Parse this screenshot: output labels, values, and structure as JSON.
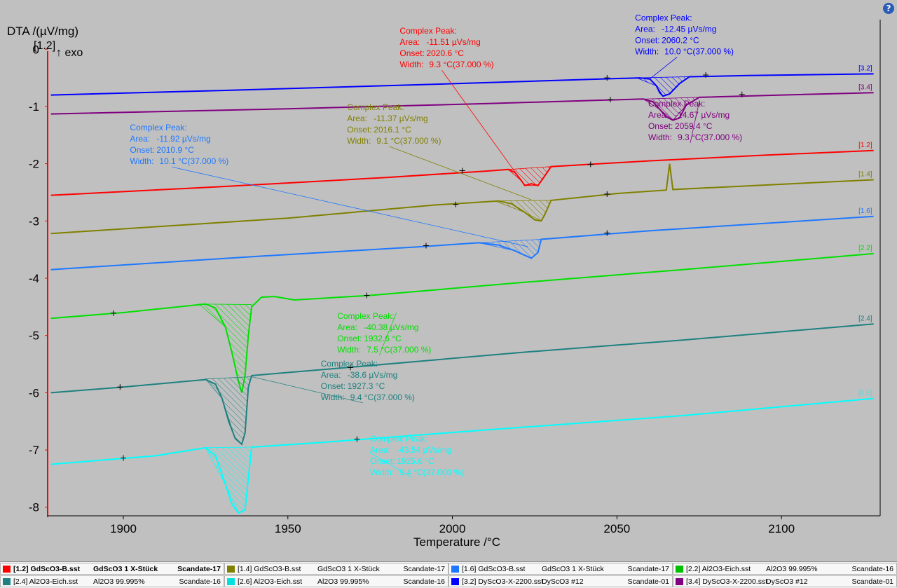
{
  "ui": {
    "help_glyph": "?"
  },
  "chart_data": {
    "type": "line",
    "ylabel": "DTA /(µV/mg)",
    "ymarker": "[1.2]",
    "exo_label": "↑ exo",
    "xlabel": "Temperature /°C",
    "xlim": [
      1877,
      2130
    ],
    "ylim": [
      -8.15,
      0.15
    ],
    "xticks": [
      1900,
      1950,
      2000,
      2050,
      2100
    ],
    "yticks": [
      0,
      -1,
      -2,
      -3,
      -4,
      -5,
      -6,
      -7,
      -8
    ],
    "axis_color": "#ff0000",
    "series": [
      {
        "id": "[3.2]",
        "color": "#0000ff",
        "points": [
          [
            1878,
            -0.8
          ],
          [
            1930,
            -0.72
          ],
          [
            1990,
            -0.62
          ],
          [
            2040,
            -0.53
          ],
          [
            2057,
            -0.5
          ],
          [
            2060,
            -0.52
          ],
          [
            2062,
            -0.64
          ],
          [
            2063,
            -0.76
          ],
          [
            2064,
            -0.82
          ],
          [
            2066,
            -0.78
          ],
          [
            2069,
            -0.6
          ],
          [
            2072,
            -0.48
          ],
          [
            2090,
            -0.46
          ],
          [
            2128,
            -0.43
          ]
        ],
        "markers": [
          [
            2047,
            -0.5
          ],
          [
            2077,
            -0.45
          ]
        ],
        "peak": {
          "poly": [
            [
              2056,
              -0.5
            ],
            [
              2062,
              -0.64
            ],
            [
              2064,
              -0.82
            ],
            [
              2066,
              -0.78
            ],
            [
              2069,
              -0.6
            ],
            [
              2072,
              -0.48
            ]
          ],
          "title": "Complex Peak:",
          "area": "-12.45 µVs/mg",
          "onset": "2060.2 °C",
          "width": "10.0 °C(37.000 %)",
          "anchor": [
            2060,
            -0.52
          ],
          "label_pos": [
            2055.5,
            0.5
          ]
        }
      },
      {
        "id": "[3.4]",
        "color": "#800080",
        "points": [
          [
            1878,
            -1.13
          ],
          [
            1950,
            -1.04
          ],
          [
            2010,
            -0.95
          ],
          [
            2045,
            -0.89
          ],
          [
            2058,
            -0.87
          ],
          [
            2061,
            -0.92
          ],
          [
            2063,
            -1.05
          ],
          [
            2065,
            -1.18
          ],
          [
            2067,
            -1.24
          ],
          [
            2069,
            -1.2
          ],
          [
            2071,
            -0.98
          ],
          [
            2075,
            -0.84
          ],
          [
            2100,
            -0.8
          ],
          [
            2128,
            -0.76
          ]
        ],
        "markers": [
          [
            2048,
            -0.88
          ],
          [
            2088,
            -0.79
          ]
        ],
        "peak": {
          "poly": [
            [
              2058,
              -0.87
            ],
            [
              2063,
              -1.05
            ],
            [
              2067,
              -1.24
            ],
            [
              2071,
              -0.98
            ],
            [
              2075,
              -0.84
            ]
          ],
          "title": "Complex Peak:",
          "area": "-14.67 µVs/mg",
          "onset": "2059.4 °C",
          "width": "9.3 °C(37.000 %)",
          "anchor": [
            2075,
            -0.92
          ],
          "label_pos": [
            2059.5,
            -1.0
          ]
        }
      },
      {
        "id": "[1.2]",
        "color": "#ff0000",
        "points": [
          [
            1878,
            -2.55
          ],
          [
            1930,
            -2.4
          ],
          [
            1980,
            -2.24
          ],
          [
            2010,
            -2.13
          ],
          [
            2017,
            -2.1
          ],
          [
            2019,
            -2.15
          ],
          [
            2021,
            -2.3
          ],
          [
            2022,
            -2.38
          ],
          [
            2024,
            -2.35
          ],
          [
            2026,
            -2.38
          ],
          [
            2028,
            -2.22
          ],
          [
            2030,
            -2.05
          ],
          [
            2060,
            -1.95
          ],
          [
            2095,
            -1.85
          ],
          [
            2128,
            -1.77
          ]
        ],
        "markers": [
          [
            2003,
            -2.12
          ],
          [
            2042,
            -2.01
          ]
        ],
        "peak": {
          "poly": [
            [
              2017,
              -2.1
            ],
            [
              2021,
              -2.3
            ],
            [
              2022,
              -2.38
            ],
            [
              2026,
              -2.38
            ],
            [
              2028,
              -2.22
            ],
            [
              2030,
              -2.05
            ]
          ],
          "title": "Complex Peak:",
          "area": "-11.51 µVs/mg",
          "onset": "2020.6 °C",
          "width": "9.3 °C(37.000 %)",
          "anchor": [
            2021,
            -2.3
          ],
          "label_pos": [
            1984,
            0.27
          ]
        }
      },
      {
        "id": "[1.4]",
        "color": "#808000",
        "points": [
          [
            1878,
            -3.22
          ],
          [
            1950,
            -2.95
          ],
          [
            1995,
            -2.72
          ],
          [
            2014,
            -2.65
          ],
          [
            2018,
            -2.7
          ],
          [
            2022,
            -2.85
          ],
          [
            2025,
            -2.98
          ],
          [
            2027,
            -3.0
          ],
          [
            2028,
            -2.9
          ],
          [
            2030,
            -2.64
          ],
          [
            2050,
            -2.52
          ],
          [
            2065,
            -2.46
          ],
          [
            2066,
            -2.0
          ],
          [
            2067,
            -2.45
          ],
          [
            2128,
            -2.28
          ]
        ],
        "markers": [
          [
            2001,
            -2.71
          ],
          [
            2047,
            -2.53
          ]
        ],
        "peak": {
          "poly": [
            [
              2013,
              -2.65
            ],
            [
              2022,
              -2.85
            ],
            [
              2027,
              -3.0
            ],
            [
              2030,
              -2.64
            ]
          ],
          "title": "Complex Peak:",
          "area": "-11.37 µVs/mg",
          "onset": "2016.1 °C",
          "width": "9.1 °C(37.000 %)",
          "anchor": [
            2024,
            -2.63
          ],
          "label_pos": [
            1968,
            -1.06
          ]
        }
      },
      {
        "id": "[1.6]",
        "color": "#1e78ff",
        "points": [
          [
            1878,
            -3.85
          ],
          [
            1940,
            -3.62
          ],
          [
            1990,
            -3.45
          ],
          [
            2008,
            -3.38
          ],
          [
            2014,
            -3.42
          ],
          [
            2019,
            -3.52
          ],
          [
            2022,
            -3.6
          ],
          [
            2024,
            -3.65
          ],
          [
            2026,
            -3.55
          ],
          [
            2027,
            -3.32
          ],
          [
            2060,
            -3.17
          ],
          [
            2128,
            -2.92
          ]
        ],
        "markers": [
          [
            1992,
            -3.43
          ],
          [
            2047,
            -3.21
          ]
        ],
        "peak": {
          "poly": [
            [
              2008,
              -3.38
            ],
            [
              2019,
              -3.52
            ],
            [
              2024,
              -3.65
            ],
            [
              2026,
              -3.55
            ],
            [
              2027,
              -3.32
            ]
          ],
          "title": "Complex Peak:",
          "area": "-11.92 µVs/mg",
          "onset": "2010.9 °C",
          "width": "10.1 °C(37.000 %)",
          "anchor": [
            2023,
            -3.45
          ],
          "label_pos": [
            1902,
            -1.42
          ]
        }
      },
      {
        "id": "[2.2]",
        "color": "#00e000",
        "points": [
          [
            1878,
            -4.7
          ],
          [
            1900,
            -4.6
          ],
          [
            1925,
            -4.45
          ],
          [
            1928,
            -4.52
          ],
          [
            1931,
            -4.85
          ],
          [
            1933,
            -5.3
          ],
          [
            1935,
            -5.8
          ],
          [
            1936,
            -6.0
          ],
          [
            1937,
            -5.7
          ],
          [
            1938,
            -5.0
          ],
          [
            1939,
            -4.5
          ],
          [
            1942,
            -4.33
          ],
          [
            1946,
            -4.32
          ],
          [
            1952,
            -4.38
          ],
          [
            1975,
            -4.3
          ],
          [
            2020,
            -4.08
          ],
          [
            2070,
            -3.85
          ],
          [
            2128,
            -3.57
          ]
        ],
        "markers": [
          [
            1897,
            -4.61
          ],
          [
            1974,
            -4.3
          ]
        ],
        "peak": {
          "poly": [
            [
              1923,
              -4.45
            ],
            [
              1931,
              -4.85
            ],
            [
              1935,
              -5.8
            ],
            [
              1936,
              -6.0
            ],
            [
              1937,
              -5.7
            ],
            [
              1938,
              -5.0
            ],
            [
              1939,
              -4.46
            ]
          ],
          "title": "Complex Peak:",
          "area": "-40.38 µVs/mg",
          "onset": "1932.6 °C",
          "width": "7.5 °C(37.000 %)",
          "anchor": [
            1983,
            -4.6
          ],
          "label_pos": [
            1965,
            -4.71
          ]
        }
      },
      {
        "id": "[2.4]",
        "color": "#1e8080",
        "points": [
          [
            1878,
            -6.0
          ],
          [
            1900,
            -5.9
          ],
          [
            1925,
            -5.77
          ],
          [
            1928,
            -5.85
          ],
          [
            1930,
            -6.1
          ],
          [
            1932,
            -6.5
          ],
          [
            1934,
            -6.8
          ],
          [
            1936,
            -6.9
          ],
          [
            1937,
            -6.7
          ],
          [
            1938,
            -5.9
          ],
          [
            1939,
            -5.7
          ],
          [
            1970,
            -5.55
          ],
          [
            2020,
            -5.3
          ],
          [
            2070,
            -5.08
          ],
          [
            2128,
            -4.8
          ]
        ],
        "markers": [
          [
            1899,
            -5.9
          ],
          [
            1969,
            -5.56
          ]
        ],
        "peak": {
          "poly": [
            [
              1925,
              -5.76
            ],
            [
              1930,
              -6.1
            ],
            [
              1934,
              -6.8
            ],
            [
              1936,
              -6.9
            ],
            [
              1937,
              -6.7
            ],
            [
              1938,
              -5.9
            ],
            [
              1939,
              -5.72
            ]
          ],
          "title": "Complex Peak:",
          "area": "-38.6 µVs/mg",
          "onset": "1927.3 °C",
          "width": "9.4 °C(37.000 %)",
          "anchor": [
            1939,
            -5.72
          ],
          "label_pos": [
            1960,
            -5.54
          ]
        }
      },
      {
        "id": "[2.6]",
        "color": "#00ffff",
        "points": [
          [
            1878,
            -7.25
          ],
          [
            1910,
            -7.1
          ],
          [
            1925,
            -6.96
          ],
          [
            1928,
            -7.1
          ],
          [
            1931,
            -7.6
          ],
          [
            1933,
            -7.95
          ],
          [
            1935,
            -8.1
          ],
          [
            1937,
            -8.05
          ],
          [
            1938,
            -7.5
          ],
          [
            1939,
            -6.95
          ],
          [
            1960,
            -6.87
          ],
          [
            2010,
            -6.65
          ],
          [
            2070,
            -6.4
          ],
          [
            2128,
            -6.1
          ]
        ],
        "markers": [
          [
            1900,
            -7.14
          ],
          [
            1971,
            -6.81
          ]
        ],
        "peak": {
          "poly": [
            [
              1925,
              -6.96
            ],
            [
              1931,
              -7.6
            ],
            [
              1935,
              -8.1
            ],
            [
              1937,
              -8.05
            ],
            [
              1938,
              -7.5
            ],
            [
              1939,
              -6.95
            ]
          ],
          "title": "Complex Peak:",
          "area": "-43.54 µVs/mg",
          "onset": "1925.6 °C",
          "width": "9.4 °C(37.000 %)",
          "anchor": [
            1975,
            -7.05
          ],
          "label_pos": [
            1975,
            -6.85
          ]
        }
      }
    ]
  },
  "legend": [
    {
      "id": "[1.2]",
      "file": "GdScO3-B.sst",
      "sample": "GdScO3 1 X-Stück",
      "proj": "Scandate-17",
      "color": "#ff0000",
      "selected": true
    },
    {
      "id": "[1.4]",
      "file": "GdScO3-B.sst",
      "sample": "GdScO3 1 X-Stück",
      "proj": "Scandate-17",
      "color": "#808000"
    },
    {
      "id": "[1.6]",
      "file": "GdScO3-B.sst",
      "sample": "GdScO3 1 X-Stück",
      "proj": "Scandate-17",
      "color": "#1e78ff"
    },
    {
      "id": "[2.2]",
      "file": "Al2O3-Eich.sst",
      "sample": "Al2O3 99.995%",
      "proj": "Scandate-16",
      "color": "#00c000"
    },
    {
      "id": "[2.4]",
      "file": "Al2O3-Eich.sst",
      "sample": "Al2O3 99.995%",
      "proj": "Scandate-16",
      "color": "#1e8080"
    },
    {
      "id": "[2.6]",
      "file": "Al2O3-Eich.sst",
      "sample": "Al2O3 99.995%",
      "proj": "Scandate-16",
      "color": "#00e0e0"
    },
    {
      "id": "[3.2]",
      "file": "DyScO3-X-2200.sst",
      "sample": "DyScO3 #12",
      "proj": "Scandate-01",
      "color": "#0000ff"
    },
    {
      "id": "[3.4]",
      "file": "DyScO3-X-2200.sst",
      "sample": "DyScO3 #12",
      "proj": "Scandate-01",
      "color": "#800080"
    }
  ]
}
